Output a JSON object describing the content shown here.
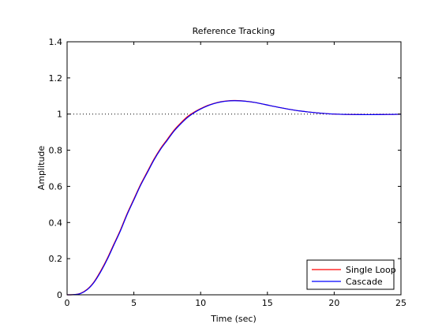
{
  "colors": {
    "background": "#ffffff",
    "axes": "#000000",
    "single_loop": "#ff0000",
    "cascade": "#0000ff",
    "reference_line": "#000000"
  },
  "chart_data": {
    "type": "line",
    "title": "Reference Tracking",
    "xlabel": "Time (sec)",
    "ylabel": "Amplitude",
    "xlim": [
      0,
      25
    ],
    "ylim": [
      0,
      1.4
    ],
    "xticks": [
      0,
      5,
      10,
      15,
      20,
      25
    ],
    "xtick_labels": [
      "0",
      "5",
      "10",
      "15",
      "20",
      "25"
    ],
    "yticks": [
      0,
      0.2,
      0.4,
      0.6,
      0.8,
      1,
      1.2,
      1.4
    ],
    "ytick_labels": [
      "0",
      "0.2",
      "0.4",
      "0.6",
      "0.8",
      "1",
      "1.2",
      "1.4"
    ],
    "grid": false,
    "legend_position": "bottom-right",
    "reference_line": {
      "y": 1,
      "style": "dotted"
    },
    "series": [
      {
        "name": "Single Loop",
        "color": "#ff0000",
        "x": [
          0,
          0.5,
          1,
          1.5,
          2,
          2.5,
          3,
          3.5,
          4,
          4.5,
          5,
          5.5,
          6,
          6.5,
          7,
          7.5,
          8,
          8.5,
          9,
          9.5,
          10,
          10.5,
          11,
          11.5,
          12,
          12.5,
          13,
          13.5,
          14,
          14.5,
          15,
          16,
          17,
          18,
          19,
          20,
          21,
          22,
          23,
          24,
          25
        ],
        "y": [
          0,
          0.001,
          0.008,
          0.03,
          0.07,
          0.13,
          0.2,
          0.28,
          0.36,
          0.45,
          0.53,
          0.61,
          0.68,
          0.75,
          0.81,
          0.86,
          0.91,
          0.95,
          0.985,
          1.01,
          1.03,
          1.047,
          1.059,
          1.068,
          1.073,
          1.075,
          1.074,
          1.07,
          1.065,
          1.058,
          1.05,
          1.035,
          1.022,
          1.012,
          1.005,
          1.0,
          0.998,
          0.997,
          0.997,
          0.998,
          0.999
        ]
      },
      {
        "name": "Cascade",
        "color": "#0000ff",
        "x": [
          0,
          0.5,
          1,
          1.5,
          2,
          2.5,
          3,
          3.5,
          4,
          4.5,
          5,
          5.5,
          6,
          6.5,
          7,
          7.5,
          8,
          8.5,
          9,
          9.5,
          10,
          10.5,
          11,
          11.5,
          12,
          12.5,
          13,
          13.5,
          14,
          14.5,
          15,
          16,
          17,
          18,
          19,
          20,
          21,
          22,
          23,
          24,
          25
        ],
        "y": [
          0,
          0.001,
          0.007,
          0.028,
          0.067,
          0.125,
          0.195,
          0.275,
          0.355,
          0.445,
          0.525,
          0.605,
          0.675,
          0.745,
          0.805,
          0.855,
          0.905,
          0.945,
          0.98,
          1.007,
          1.028,
          1.045,
          1.058,
          1.067,
          1.072,
          1.074,
          1.073,
          1.07,
          1.065,
          1.058,
          1.05,
          1.035,
          1.022,
          1.012,
          1.005,
          1.0,
          0.998,
          0.997,
          0.997,
          0.998,
          0.999
        ]
      }
    ]
  }
}
